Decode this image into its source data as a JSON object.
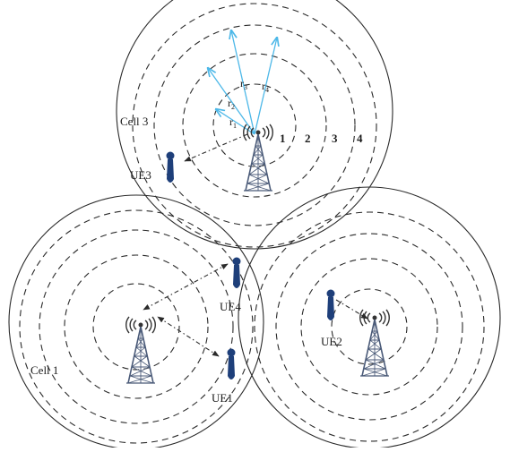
{
  "cells": [
    {
      "id": "cell3",
      "label": "Cell 3"
    },
    {
      "id": "cell1",
      "label": "Cell 1"
    },
    {
      "id": "cell2",
      "label": ""
    }
  ],
  "ring_numbers": [
    "1",
    "2",
    "3",
    "4"
  ],
  "radii": [
    {
      "base": "r",
      "sub": "1"
    },
    {
      "base": "r",
      "sub": "2"
    },
    {
      "base": "r",
      "sub": "3"
    },
    {
      "base": "r",
      "sub": "4"
    }
  ],
  "users": [
    {
      "id": "ue1",
      "label": "UE1"
    },
    {
      "id": "ue2",
      "label": "UE2"
    },
    {
      "id": "ue3",
      "label": "UE3"
    },
    {
      "id": "ue4",
      "label": "UE4"
    }
  ],
  "colors": {
    "cell_border": "#2a2a2a",
    "ring_dash": "#2a2a2a",
    "radius_arrow": "#4db8e8",
    "link_arrow": "#2a2a2a",
    "ue_body": "#1e3f7a",
    "tower": "#4a5a78"
  }
}
